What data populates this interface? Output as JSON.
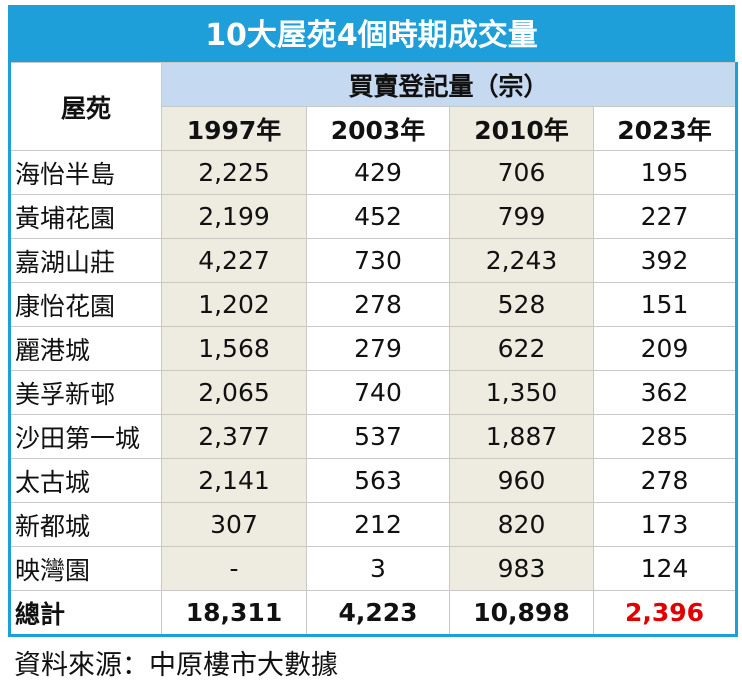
{
  "title": "10大屋苑4個時期成交量",
  "table": {
    "header": {
      "estate": "屋苑",
      "group": "買賣登記量（宗）",
      "years": [
        "1997年",
        "2003年",
        "2010年",
        "2023年"
      ]
    },
    "rows": [
      [
        "海怡半島",
        "2,225",
        "429",
        "706",
        "195"
      ],
      [
        "黃埔花園",
        "2,199",
        "452",
        "799",
        "227"
      ],
      [
        "嘉湖山莊",
        "4,227",
        "730",
        "2,243",
        "392"
      ],
      [
        "康怡花園",
        "1,202",
        "278",
        "528",
        "151"
      ],
      [
        "麗港城",
        "1,568",
        "279",
        "622",
        "209"
      ],
      [
        "美孚新邨",
        "2,065",
        "740",
        "1,350",
        "362"
      ],
      [
        "沙田第一城",
        "2,377",
        "537",
        "1,887",
        "285"
      ],
      [
        "太古城",
        "2,141",
        "563",
        "960",
        "278"
      ],
      [
        "新都城",
        "307",
        "212",
        "820",
        "173"
      ],
      [
        "映灣園",
        "-",
        "3",
        "983",
        "124"
      ]
    ],
    "total": [
      "總計",
      "18,311",
      "4,223",
      "10,898",
      "2,396"
    ]
  },
  "source": "資料來源：中原樓市大數據"
}
